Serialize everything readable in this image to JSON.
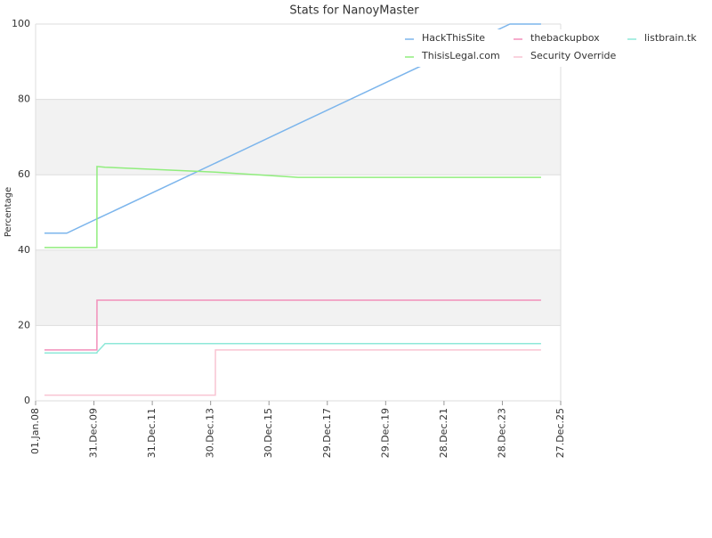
{
  "chart_data": {
    "type": "line",
    "title": "Stats for NanoyMaster",
    "y_label": "Percentage",
    "x": [
      "2008-04-21",
      "2009-01-25",
      "2010-02-06",
      "2010-02-07",
      "2010-05-19",
      "2014-02-27",
      "2014-02-28",
      "2016-12-29",
      "2024-04-01",
      "2025-04-25"
    ],
    "series": [
      {
        "name": "HackThisSite",
        "color": "#7cb5ec",
        "values": [
          44.5,
          44.5,
          48.3,
          48.3,
          49.3,
          63.1,
          63.1,
          73.5,
          100,
          100
        ]
      },
      {
        "name": "thebackupbox",
        "color": "#f28fba",
        "values": [
          13.5,
          13.5,
          13.5,
          26.7,
          26.7,
          26.7,
          26.7,
          26.7,
          26.7,
          26.7
        ]
      },
      {
        "name": "listbrain.tk",
        "color": "#8ee8d8",
        "values": [
          12.7,
          12.7,
          12.7,
          12.9,
          15.2,
          15.2,
          15.2,
          15.2,
          15.2,
          15.2
        ]
      },
      {
        "name": "ThisisLegal.com",
        "color": "#90ed7d",
        "values": [
          40.7,
          40.7,
          40.7,
          62.2,
          62.0,
          60.7,
          60.7,
          59.3,
          59.3,
          59.3
        ]
      },
      {
        "name": "Security Override",
        "color": "#f9c4d2",
        "values": [
          1.5,
          1.5,
          1.5,
          1.5,
          1.5,
          1.5,
          13.5,
          13.5,
          13.5,
          13.5
        ]
      }
    ],
    "xlim": [
      "2008-01-01",
      "2025-12-27"
    ],
    "xticks": [
      {
        "value": "2008-01-01",
        "label": "01.Jan.08"
      },
      {
        "value": "2009-12-31",
        "label": "31.Dec.09"
      },
      {
        "value": "2011-12-31",
        "label": "31.Dec.11"
      },
      {
        "value": "2013-12-30",
        "label": "30.Dec.13"
      },
      {
        "value": "2015-12-30",
        "label": "30.Dec.15"
      },
      {
        "value": "2017-12-29",
        "label": "29.Dec.17"
      },
      {
        "value": "2019-12-29",
        "label": "29.Dec.19"
      },
      {
        "value": "2021-12-28",
        "label": "28.Dec.21"
      },
      {
        "value": "2023-12-28",
        "label": "28.Dec.23"
      },
      {
        "value": "2025-12-27",
        "label": "27.Dec.25"
      }
    ],
    "ylim": [
      0,
      100
    ],
    "yticks": [
      0,
      20,
      40,
      60,
      80,
      100
    ],
    "grid": true
  }
}
